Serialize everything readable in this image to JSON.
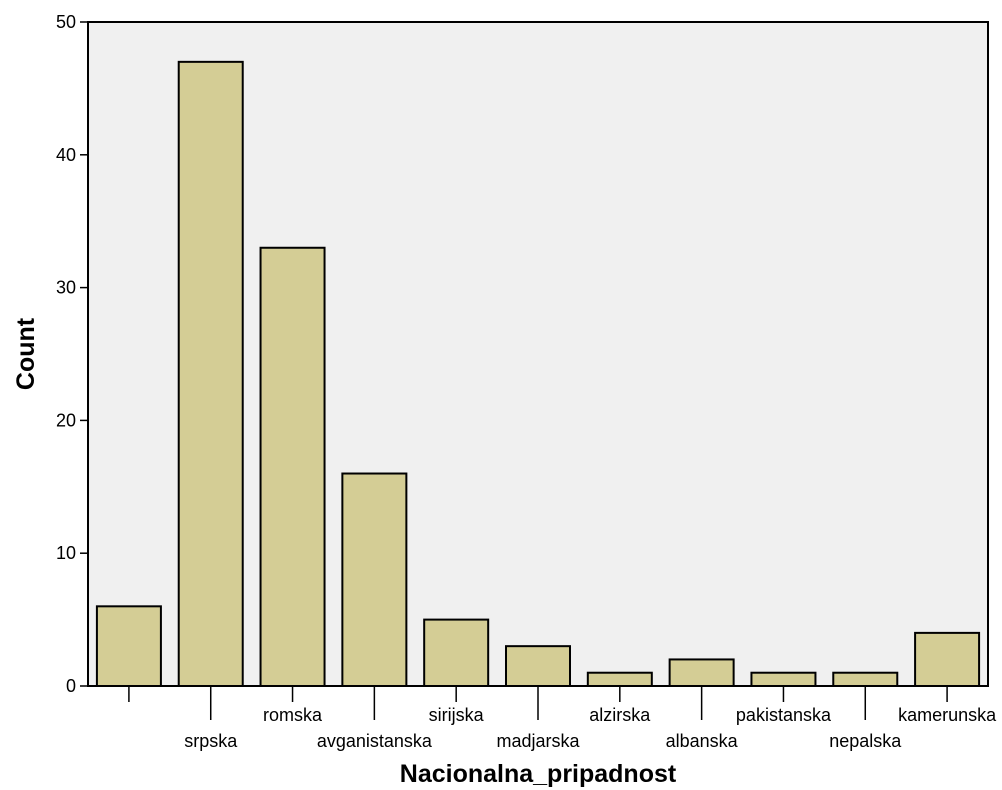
{
  "chart_data": {
    "type": "bar",
    "title": "",
    "xlabel": "Nacionalna_pripadnost",
    "ylabel": "Count",
    "ylim": [
      0,
      50
    ],
    "yticks": [
      0,
      10,
      20,
      30,
      40,
      50
    ],
    "grid": false,
    "colors": {
      "bar_fill": "#d4cd95",
      "bar_stroke": "#000000",
      "plot_bg": "#f0f0f0"
    },
    "categories": [
      "",
      "srpska",
      "romska",
      "avganistanska",
      "sirijska",
      "madjarska",
      "alzirska",
      "albanska",
      "pakistanska",
      "nepalska",
      "kamerunska"
    ],
    "values": [
      6,
      47,
      33,
      16,
      5,
      3,
      1,
      2,
      1,
      1,
      4
    ]
  }
}
